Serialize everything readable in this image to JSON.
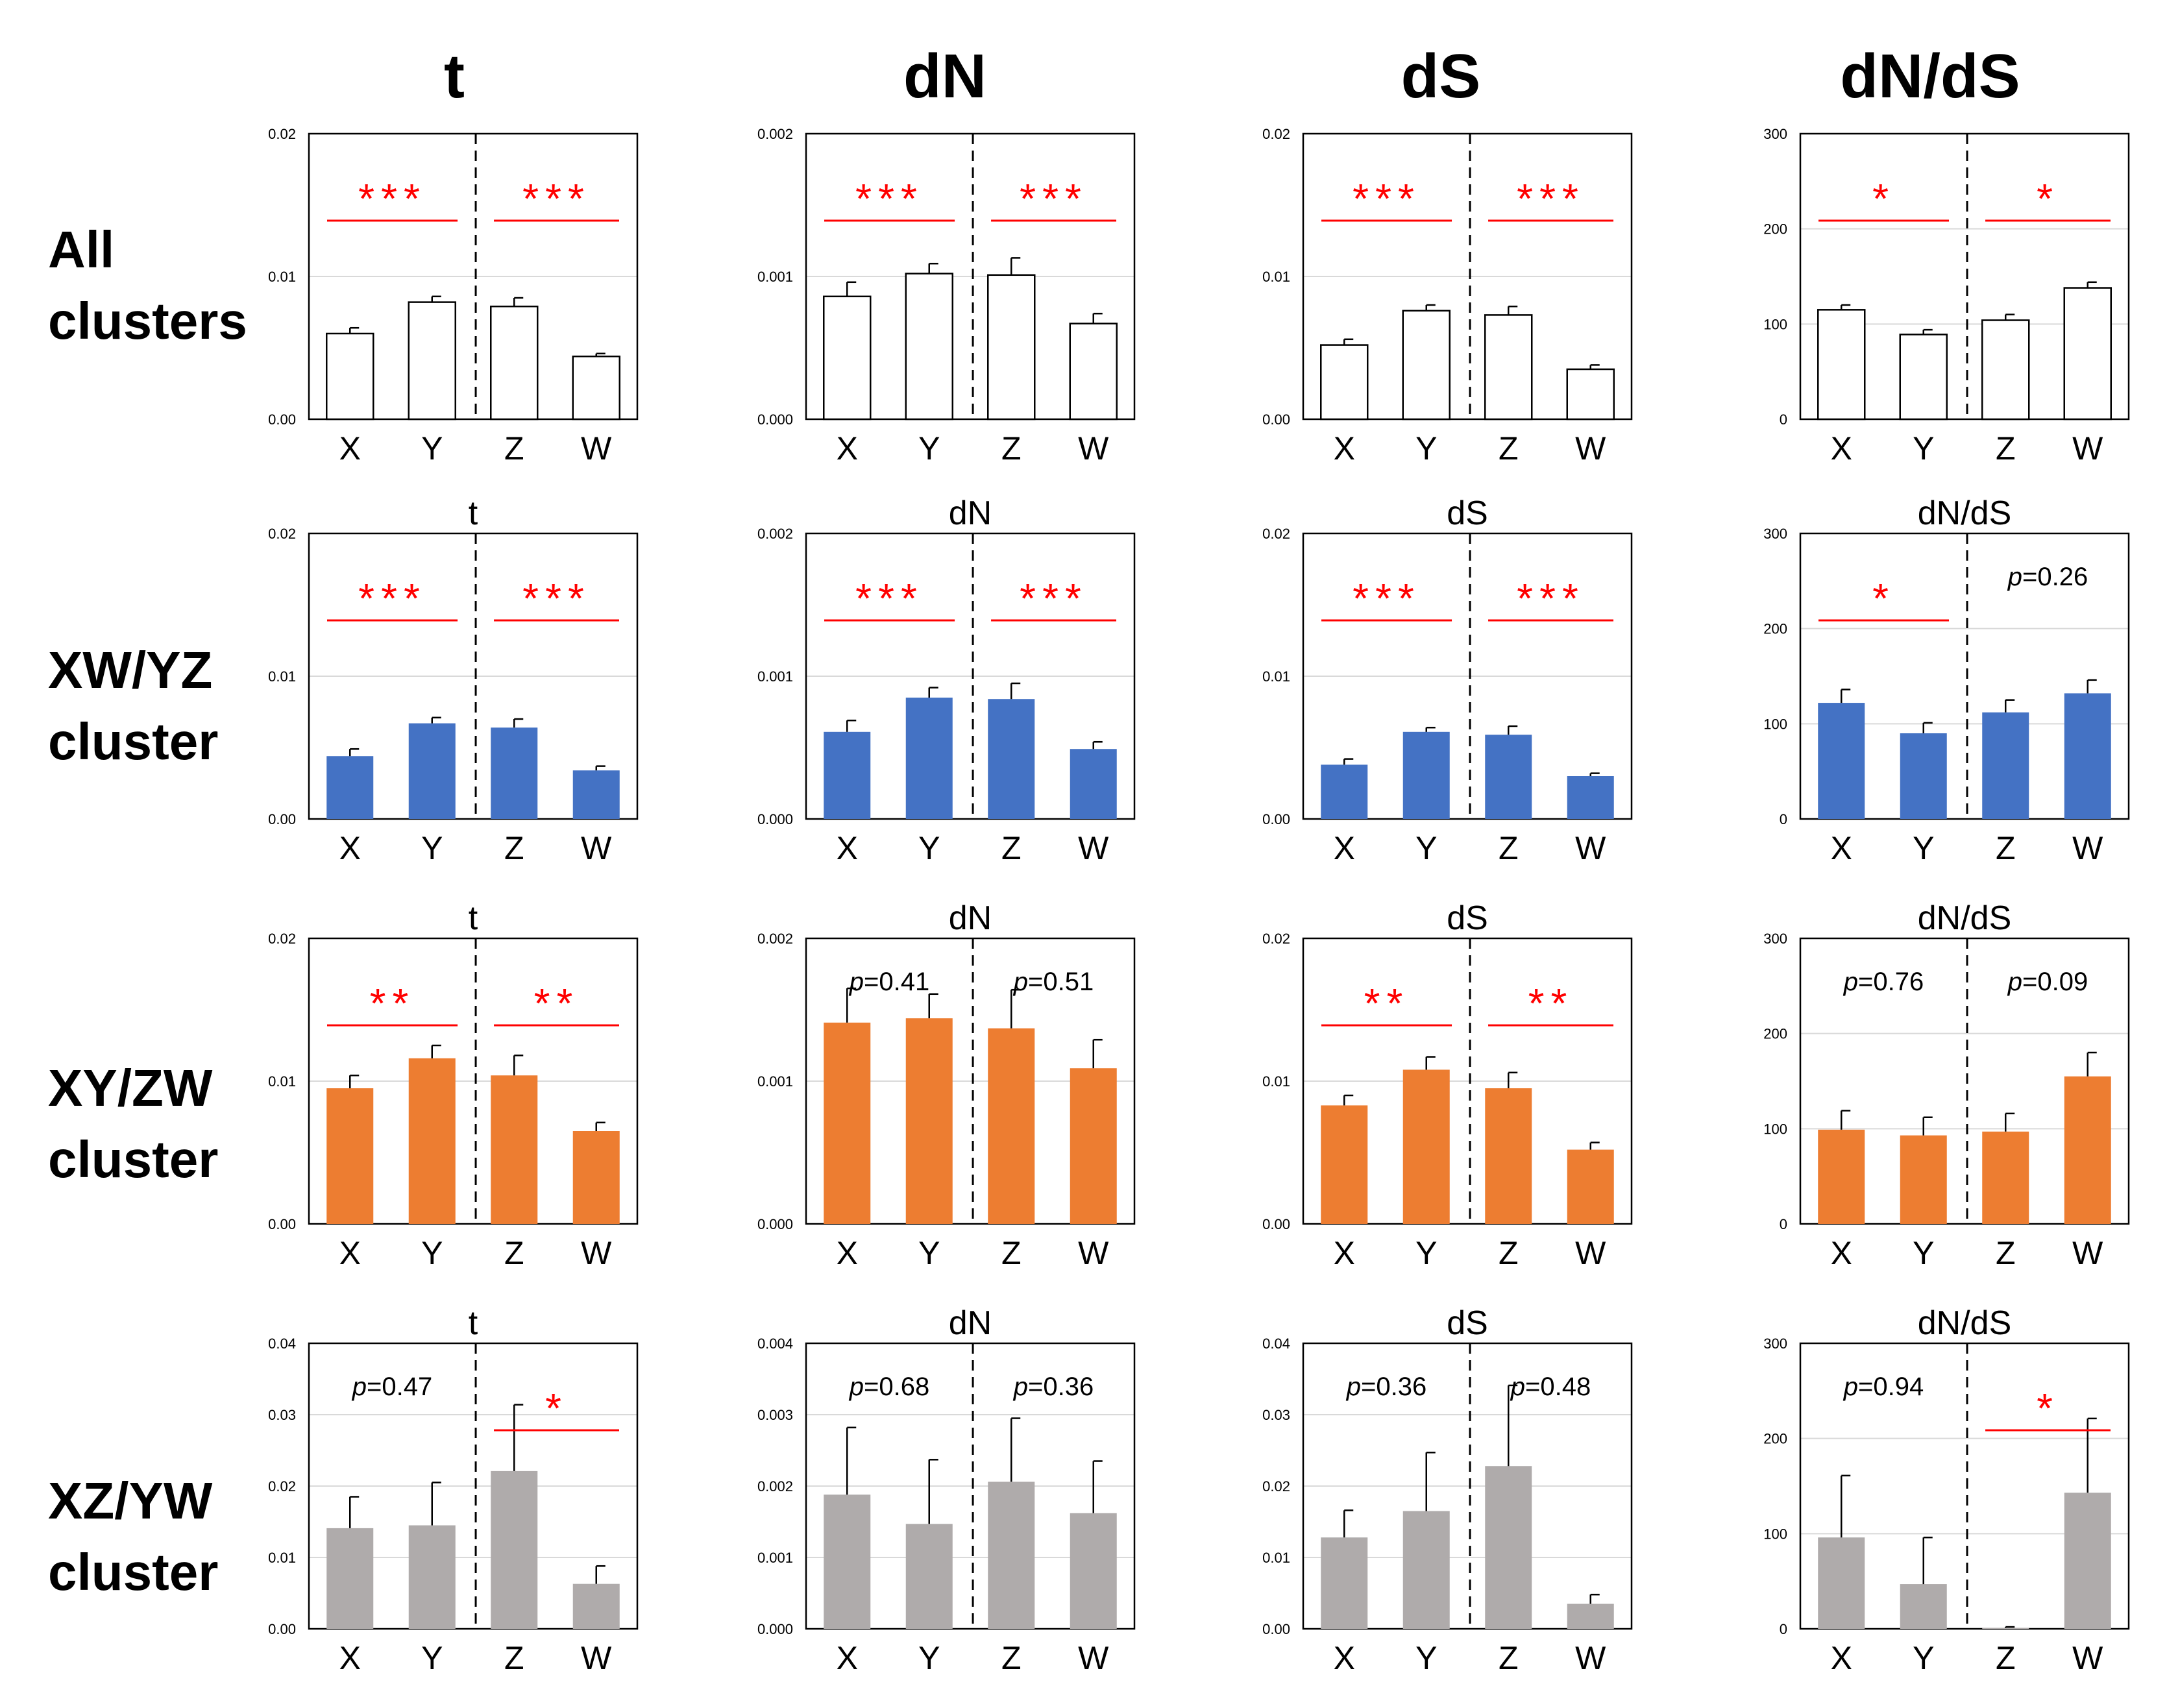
{
  "figure": {
    "column_headers": [
      "t",
      "dN",
      "dS",
      "dN/dS"
    ],
    "row_labels": [
      [
        "All",
        "clusters"
      ],
      [
        "XW/YZ",
        "cluster"
      ],
      [
        "XY/ZW",
        "cluster"
      ],
      [
        "XZ/YW",
        "cluster"
      ]
    ],
    "colors": {
      "row0": "#ffffff",
      "row1": "#4472c4",
      "row2": "#ed7d31",
      "row3": "#afabab",
      "significance": "#ff0000"
    }
  },
  "chart_data": [
    {
      "type": "bar",
      "row": 0,
      "col": 0,
      "title": "",
      "categories": [
        "X",
        "Y",
        "Z",
        "W"
      ],
      "values": [
        0.006,
        0.0082,
        0.0079,
        0.0044
      ],
      "errors": [
        0.0004,
        0.0004,
        0.0006,
        0.0002
      ],
      "ylim": [
        0,
        0.02
      ],
      "yticks": [
        "0.00",
        "0.01",
        "0.02"
      ],
      "annotations": [
        {
          "side": "left",
          "stars": "***"
        },
        {
          "side": "right",
          "stars": "***"
        }
      ]
    },
    {
      "type": "bar",
      "row": 0,
      "col": 1,
      "title": "",
      "categories": [
        "X",
        "Y",
        "Z",
        "W"
      ],
      "values": [
        0.00086,
        0.00102,
        0.00101,
        0.00067
      ],
      "errors": [
        0.0001,
        7e-05,
        0.00012,
        7e-05
      ],
      "ylim": [
        0,
        0.002
      ],
      "yticks": [
        "0.000",
        "0.001",
        "0.002"
      ],
      "annotations": [
        {
          "side": "left",
          "stars": "***"
        },
        {
          "side": "right",
          "stars": "***"
        }
      ]
    },
    {
      "type": "bar",
      "row": 0,
      "col": 2,
      "title": "",
      "categories": [
        "X",
        "Y",
        "Z",
        "W"
      ],
      "values": [
        0.0052,
        0.0076,
        0.0073,
        0.0035
      ],
      "errors": [
        0.0004,
        0.0004,
        0.0006,
        0.0003
      ],
      "ylim": [
        0,
        0.02
      ],
      "yticks": [
        "0.00",
        "0.01",
        "0.02"
      ],
      "annotations": [
        {
          "side": "left",
          "stars": "***"
        },
        {
          "side": "right",
          "stars": "***"
        }
      ]
    },
    {
      "type": "bar",
      "row": 0,
      "col": 3,
      "title": "",
      "categories": [
        "X",
        "Y",
        "Z",
        "W"
      ],
      "values": [
        115,
        89,
        104,
        138
      ],
      "errors": [
        5,
        5,
        6,
        6
      ],
      "ylim": [
        0,
        300
      ],
      "yticks": [
        "0",
        "100",
        "200",
        "300"
      ],
      "annotations": [
        {
          "side": "left",
          "stars": "*"
        },
        {
          "side": "right",
          "stars": "*"
        }
      ]
    },
    {
      "type": "bar",
      "row": 1,
      "col": 0,
      "title": "t",
      "categories": [
        "X",
        "Y",
        "Z",
        "W"
      ],
      "values": [
        0.0044,
        0.0067,
        0.0064,
        0.0034
      ],
      "errors": [
        0.0005,
        0.0004,
        0.0006,
        0.0003
      ],
      "ylim": [
        0,
        0.02
      ],
      "yticks": [
        "0.00",
        "0.01",
        "0.02"
      ],
      "annotations": [
        {
          "side": "left",
          "stars": "***"
        },
        {
          "side": "right",
          "stars": "***"
        }
      ]
    },
    {
      "type": "bar",
      "row": 1,
      "col": 1,
      "title": "dN",
      "categories": [
        "X",
        "Y",
        "Z",
        "W"
      ],
      "values": [
        0.00061,
        0.00085,
        0.00084,
        0.00049
      ],
      "errors": [
        8e-05,
        7e-05,
        0.00011,
        5e-05
      ],
      "ylim": [
        0,
        0.002
      ],
      "yticks": [
        "0.000",
        "0.001",
        "0.002"
      ],
      "annotations": [
        {
          "side": "left",
          "stars": "***"
        },
        {
          "side": "right",
          "stars": "***"
        }
      ]
    },
    {
      "type": "bar",
      "row": 1,
      "col": 2,
      "title": "dS",
      "categories": [
        "X",
        "Y",
        "Z",
        "W"
      ],
      "values": [
        0.0038,
        0.0061,
        0.0059,
        0.003
      ],
      "errors": [
        0.0004,
        0.0003,
        0.0006,
        0.0002
      ],
      "ylim": [
        0,
        0.02
      ],
      "yticks": [
        "0.00",
        "0.01",
        "0.02"
      ],
      "annotations": [
        {
          "side": "left",
          "stars": "***"
        },
        {
          "side": "right",
          "stars": "***"
        }
      ]
    },
    {
      "type": "bar",
      "row": 1,
      "col": 3,
      "title": "dN/dS",
      "categories": [
        "X",
        "Y",
        "Z",
        "W"
      ],
      "values": [
        122,
        90,
        112,
        132
      ],
      "errors": [
        14,
        11,
        13,
        14
      ],
      "ylim": [
        0,
        300
      ],
      "yticks": [
        "0",
        "100",
        "200",
        "300"
      ],
      "annotations": [
        {
          "side": "left",
          "stars": "*"
        },
        {
          "side": "right",
          "p": "0.26"
        }
      ]
    },
    {
      "type": "bar",
      "row": 2,
      "col": 0,
      "title": "t",
      "categories": [
        "X",
        "Y",
        "Z",
        "W"
      ],
      "values": [
        0.0095,
        0.0116,
        0.0104,
        0.0065
      ],
      "errors": [
        0.0009,
        0.0009,
        0.0014,
        0.0006
      ],
      "ylim": [
        0,
        0.02
      ],
      "yticks": [
        "0.00",
        "0.01",
        "0.02"
      ],
      "annotations": [
        {
          "side": "left",
          "stars": "**"
        },
        {
          "side": "right",
          "stars": "**"
        }
      ]
    },
    {
      "type": "bar",
      "row": 2,
      "col": 1,
      "title": "dN",
      "categories": [
        "X",
        "Y",
        "Z",
        "W"
      ],
      "values": [
        0.00141,
        0.00144,
        0.00137,
        0.00109
      ],
      "errors": [
        0.00024,
        0.00017,
        0.00027,
        0.0002
      ],
      "ylim": [
        0,
        0.002
      ],
      "yticks": [
        "0.000",
        "0.001",
        "0.002"
      ],
      "annotations": [
        {
          "side": "left",
          "p": "0.41"
        },
        {
          "side": "right",
          "p": "0.51"
        }
      ]
    },
    {
      "type": "bar",
      "row": 2,
      "col": 2,
      "title": "dS",
      "categories": [
        "X",
        "Y",
        "Z",
        "W"
      ],
      "values": [
        0.0083,
        0.0108,
        0.0095,
        0.0052
      ],
      "errors": [
        0.0007,
        0.0009,
        0.0011,
        0.0005
      ],
      "ylim": [
        0,
        0.02
      ],
      "yticks": [
        "0.00",
        "0.01",
        "0.02"
      ],
      "annotations": [
        {
          "side": "left",
          "stars": "**"
        },
        {
          "side": "right",
          "stars": "**"
        }
      ]
    },
    {
      "type": "bar",
      "row": 2,
      "col": 3,
      "title": "dN/dS",
      "categories": [
        "X",
        "Y",
        "Z",
        "W"
      ],
      "values": [
        99,
        93,
        97,
        155
      ],
      "errors": [
        20,
        19,
        19,
        25
      ],
      "ylim": [
        0,
        300
      ],
      "yticks": [
        "0",
        "100",
        "200",
        "300"
      ],
      "annotations": [
        {
          "side": "left",
          "p": "0.76"
        },
        {
          "side": "right",
          "p": "0.09"
        }
      ]
    },
    {
      "type": "bar",
      "row": 3,
      "col": 0,
      "title": "t",
      "categories": [
        "X",
        "Y",
        "Z",
        "W"
      ],
      "values": [
        0.0141,
        0.0145,
        0.0221,
        0.0063
      ],
      "errors": [
        0.0044,
        0.006,
        0.0093,
        0.0025
      ],
      "ylim": [
        0,
        0.04
      ],
      "yticks": [
        "0.00",
        "0.01",
        "0.02",
        "0.03",
        "0.04"
      ],
      "annotations": [
        {
          "side": "left",
          "p": "0.47"
        },
        {
          "side": "right",
          "stars": "*"
        }
      ]
    },
    {
      "type": "bar",
      "row": 3,
      "col": 1,
      "title": "dN",
      "categories": [
        "X",
        "Y",
        "Z",
        "W"
      ],
      "values": [
        0.00188,
        0.00147,
        0.00206,
        0.00162
      ],
      "errors": [
        0.00094,
        0.0009,
        0.00089,
        0.00073
      ],
      "ylim": [
        0,
        0.004
      ],
      "yticks": [
        "0.000",
        "0.001",
        "0.002",
        "0.003",
        "0.004"
      ],
      "annotations": [
        {
          "side": "left",
          "p": "0.68"
        },
        {
          "side": "right",
          "p": "0.36"
        }
      ]
    },
    {
      "type": "bar",
      "row": 3,
      "col": 2,
      "title": "dS",
      "categories": [
        "X",
        "Y",
        "Z",
        "W"
      ],
      "values": [
        0.0128,
        0.0165,
        0.0228,
        0.0035
      ],
      "errors": [
        0.0038,
        0.0082,
        0.0113,
        0.0013
      ],
      "ylim": [
        0,
        0.04
      ],
      "yticks": [
        "0.00",
        "0.01",
        "0.02",
        "0.03",
        "0.04"
      ],
      "annotations": [
        {
          "side": "left",
          "p": "0.36"
        },
        {
          "side": "right",
          "p": "0.48"
        }
      ]
    },
    {
      "type": "bar",
      "row": 3,
      "col": 3,
      "title": "dN/dS",
      "categories": [
        "X",
        "Y",
        "Z",
        "W"
      ],
      "values": [
        96,
        47,
        1,
        143
      ],
      "errors": [
        65,
        49,
        1,
        78
      ],
      "ylim": [
        0,
        300
      ],
      "yticks": [
        "0",
        "100",
        "200",
        "300"
      ],
      "annotations": [
        {
          "side": "left",
          "p": "0.94"
        },
        {
          "side": "right",
          "stars": "*"
        }
      ]
    }
  ]
}
